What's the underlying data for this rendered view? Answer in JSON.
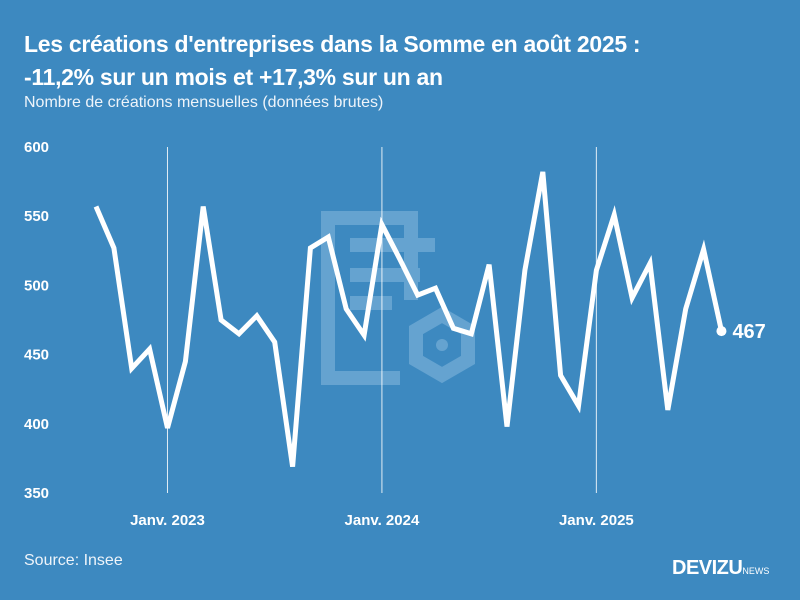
{
  "header": {
    "title_line1": "Les créations d'entreprises dans la Somme en août 2025 :",
    "title_line2": "-11,2% sur un mois et +17,3% sur un an",
    "subtitle": "Nombre de créations mensuelles (données brutes)"
  },
  "footer": {
    "source": "Source: Insee",
    "logo_main": "DEVIZU",
    "logo_suffix": "NEWS"
  },
  "colors": {
    "background": "#3d89c0",
    "line": "#ffffff",
    "watermark": "#6aa6d2"
  },
  "chart_data": {
    "type": "line",
    "title": "Les créations d'entreprises dans la Somme en août 2025 : -11,2% sur un mois et +17,3% sur un an",
    "subtitle": "Nombre de créations mensuelles (données brutes)",
    "xlabel": "",
    "ylabel": "",
    "ylim": [
      350,
      600
    ],
    "yticks": [
      600,
      550,
      500,
      450,
      400,
      350
    ],
    "xtick_labels": [
      {
        "label": "Janv. 2023",
        "index": 4
      },
      {
        "label": "Janv. 2024",
        "index": 16
      },
      {
        "label": "Janv. 2025",
        "index": 28
      }
    ],
    "grid": "vertical lines at January",
    "x": [
      "2022-09",
      "2022-10",
      "2022-11",
      "2022-12",
      "2023-01",
      "2023-02",
      "2023-03",
      "2023-04",
      "2023-05",
      "2023-06",
      "2023-07",
      "2023-08",
      "2023-09",
      "2023-10",
      "2023-11",
      "2023-12",
      "2024-01",
      "2024-02",
      "2024-03",
      "2024-04",
      "2024-05",
      "2024-06",
      "2024-07",
      "2024-08",
      "2024-09",
      "2024-10",
      "2024-11",
      "2024-12",
      "2025-01",
      "2025-02",
      "2025-03",
      "2025-04",
      "2025-05",
      "2025-06",
      "2025-07",
      "2025-08"
    ],
    "series": [
      {
        "name": "Créations mensuelles",
        "values": [
          557,
          527,
          440,
          454,
          397,
          445,
          557,
          475,
          465,
          478,
          459,
          369,
          527,
          535,
          483,
          464,
          544,
          519,
          493,
          498,
          469,
          465,
          515,
          398,
          511,
          582,
          435,
          413,
          511,
          551,
          491,
          516,
          410,
          483,
          526,
          467
        ]
      }
    ],
    "annotation": {
      "label": "467",
      "index": 35
    }
  }
}
